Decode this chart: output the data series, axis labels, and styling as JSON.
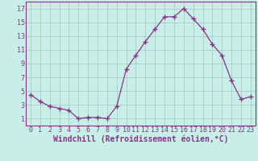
{
  "x": [
    0,
    1,
    2,
    3,
    4,
    5,
    6,
    7,
    8,
    9,
    10,
    11,
    12,
    13,
    14,
    15,
    16,
    17,
    18,
    19,
    20,
    21,
    22,
    23
  ],
  "y": [
    4.5,
    3.5,
    2.8,
    2.5,
    2.2,
    1.0,
    1.2,
    1.2,
    1.0,
    2.8,
    8.2,
    10.2,
    12.2,
    14.0,
    15.8,
    15.8,
    17.0,
    15.5,
    14.0,
    11.8,
    10.2,
    6.5,
    3.8,
    4.2
  ],
  "line_color": "#883388",
  "marker": "+",
  "marker_size": 4,
  "marker_linewidth": 1.0,
  "bg_color": "#c8eee8",
  "grid_color": "#aaccc8",
  "xlabel": "Windchill (Refroidissement éolien,°C)",
  "xlabel_color": "#883388",
  "ytick_labels": [
    "1",
    "3",
    "5",
    "7",
    "9",
    "11",
    "13",
    "15",
    "17"
  ],
  "yticks": [
    1,
    3,
    5,
    7,
    9,
    11,
    13,
    15,
    17
  ],
  "ylim": [
    0.0,
    18.0
  ],
  "xlim": [
    -0.5,
    23.5
  ],
  "tick_color": "#883388",
  "tick_fontsize": 6,
  "xlabel_fontsize": 7
}
